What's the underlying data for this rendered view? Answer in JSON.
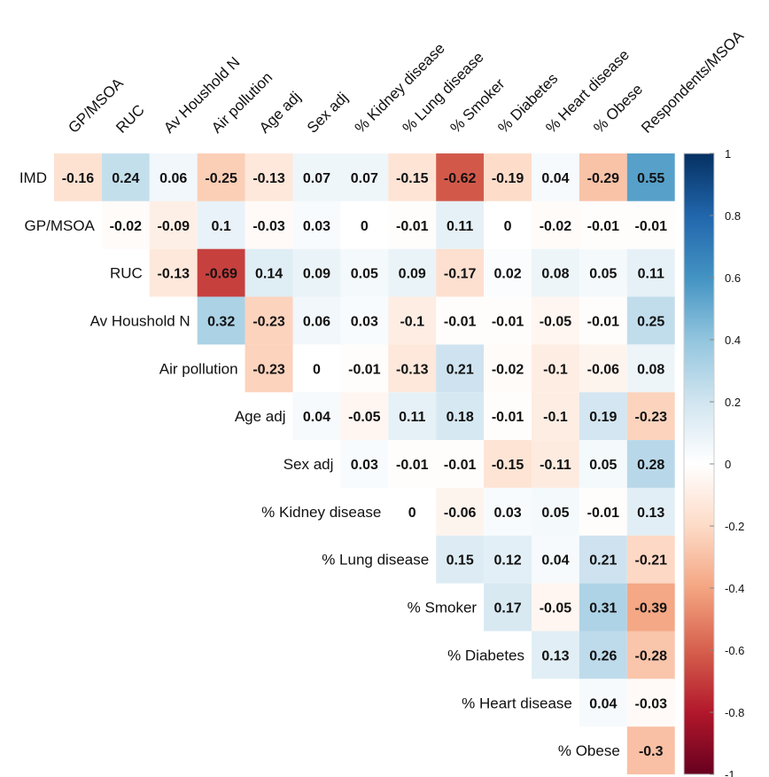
{
  "chart_data": {
    "type": "heatmap",
    "title": "",
    "layout": "upper-triangle",
    "rows": [
      "IMD",
      "GP/MSOA",
      "RUC",
      "Av Houshold N",
      "Air pollution",
      "Age adj",
      "Sex adj",
      "% Kidney disease",
      "% Lung disease",
      "% Smoker",
      "% Diabetes",
      "% Heart disease",
      "% Obese"
    ],
    "columns": [
      "GP/MSOA",
      "RUC",
      "Av Houshold N",
      "Air pollution",
      "Age adj",
      "Sex adj",
      "% Kidney disease",
      "% Lung disease",
      "% Smoker",
      "% Diabetes",
      "% Heart disease",
      "% Obese",
      "Respondents/MSOA"
    ],
    "values": [
      [
        -0.16,
        0.24,
        0.06,
        -0.25,
        -0.13,
        0.07,
        0.07,
        -0.15,
        -0.62,
        -0.19,
        0.04,
        -0.29,
        0.55
      ],
      [
        null,
        -0.02,
        -0.09,
        0.1,
        -0.03,
        0.03,
        0,
        -0.01,
        0.11,
        0,
        -0.02,
        -0.01,
        -0.01
      ],
      [
        null,
        null,
        -0.13,
        -0.69,
        0.14,
        0.09,
        0.05,
        0.09,
        -0.17,
        0.02,
        0.08,
        0.05,
        0.11
      ],
      [
        null,
        null,
        null,
        0.32,
        -0.23,
        0.06,
        0.03,
        -0.1,
        -0.01,
        -0.01,
        -0.05,
        -0.01,
        0.25
      ],
      [
        null,
        null,
        null,
        null,
        -0.23,
        0,
        -0.01,
        -0.13,
        0.21,
        -0.02,
        -0.1,
        -0.06,
        0.08
      ],
      [
        null,
        null,
        null,
        null,
        null,
        0.04,
        -0.05,
        0.11,
        0.18,
        -0.01,
        -0.1,
        0.19,
        -0.23
      ],
      [
        null,
        null,
        null,
        null,
        null,
        null,
        0.03,
        -0.01,
        -0.01,
        -0.15,
        -0.11,
        0.05,
        0.28
      ],
      [
        null,
        null,
        null,
        null,
        null,
        null,
        null,
        0,
        -0.06,
        0.03,
        0.05,
        -0.01,
        0.13
      ],
      [
        null,
        null,
        null,
        null,
        null,
        null,
        null,
        null,
        0.15,
        0.12,
        0.04,
        0.21,
        -0.21
      ],
      [
        null,
        null,
        null,
        null,
        null,
        null,
        null,
        null,
        null,
        0.17,
        -0.05,
        0.31,
        -0.39
      ],
      [
        null,
        null,
        null,
        null,
        null,
        null,
        null,
        null,
        null,
        null,
        0.13,
        0.26,
        -0.28
      ],
      [
        null,
        null,
        null,
        null,
        null,
        null,
        null,
        null,
        null,
        null,
        null,
        0.04,
        -0.03
      ],
      [
        null,
        null,
        null,
        null,
        null,
        null,
        null,
        null,
        null,
        null,
        null,
        null,
        -0.3
      ]
    ],
    "colorbar": {
      "range": [
        -1,
        1
      ],
      "ticks": [
        1,
        0.8,
        0.6,
        0.4,
        0.2,
        0,
        -0.2,
        -0.4,
        -0.6,
        -0.8,
        -1
      ],
      "tick_labels": [
        "1",
        "0.8",
        "0.6",
        "0.4",
        "0.2",
        "0",
        "-0.2",
        "-0.4",
        "-0.6",
        "-0.8",
        "-1"
      ],
      "colors": {
        "negative": "#67001F",
        "mid": "#FFFFFF",
        "positive": "#053061"
      }
    }
  }
}
